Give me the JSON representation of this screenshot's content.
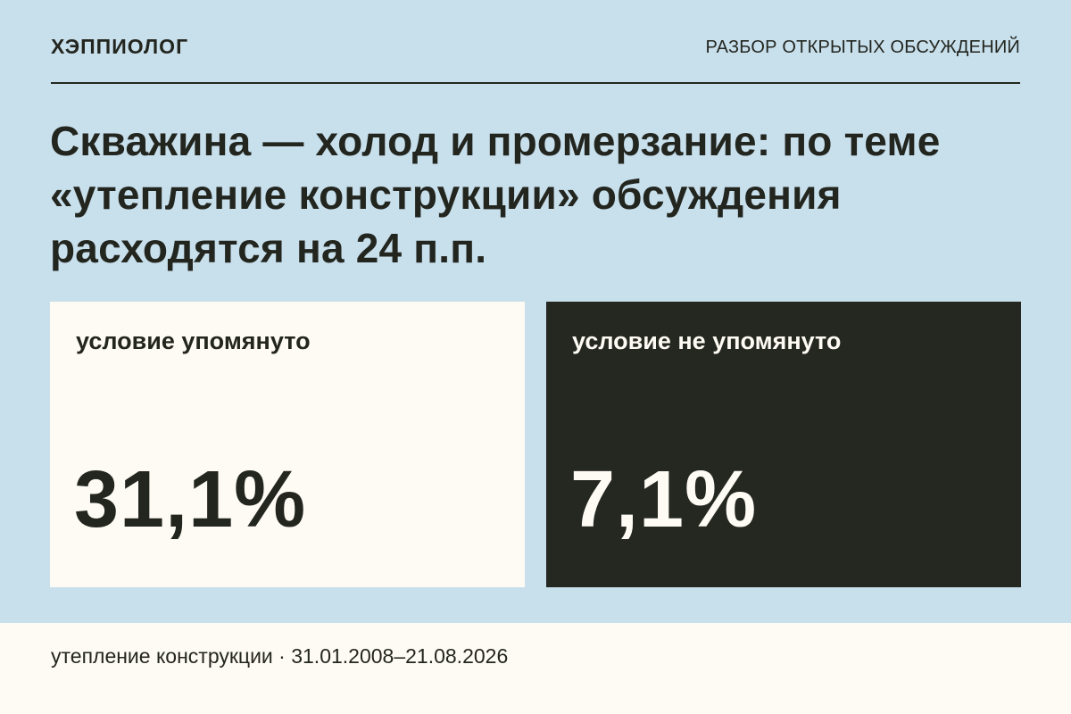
{
  "header": {
    "brand": "ХЭППИОЛОГ",
    "section": "РАЗБОР ОТКРЫТЫХ ОБСУЖДЕНИЙ"
  },
  "headline": "Скважина — холод и промерзание: по теме «утепление конструкции» обсуждения расходятся на 24 п.п.",
  "cards": [
    {
      "label": "условие упомянуто",
      "value": "31,1%"
    },
    {
      "label": "условие не упомянуто",
      "value": "7,1%"
    }
  ],
  "footer": {
    "text": "утепление конструкции · 31.01.2008–21.08.2026"
  },
  "colors": {
    "background": "#c8dfec",
    "card_light": "#fefbf4",
    "card_dark": "#252821",
    "text_dark": "#23261f"
  }
}
